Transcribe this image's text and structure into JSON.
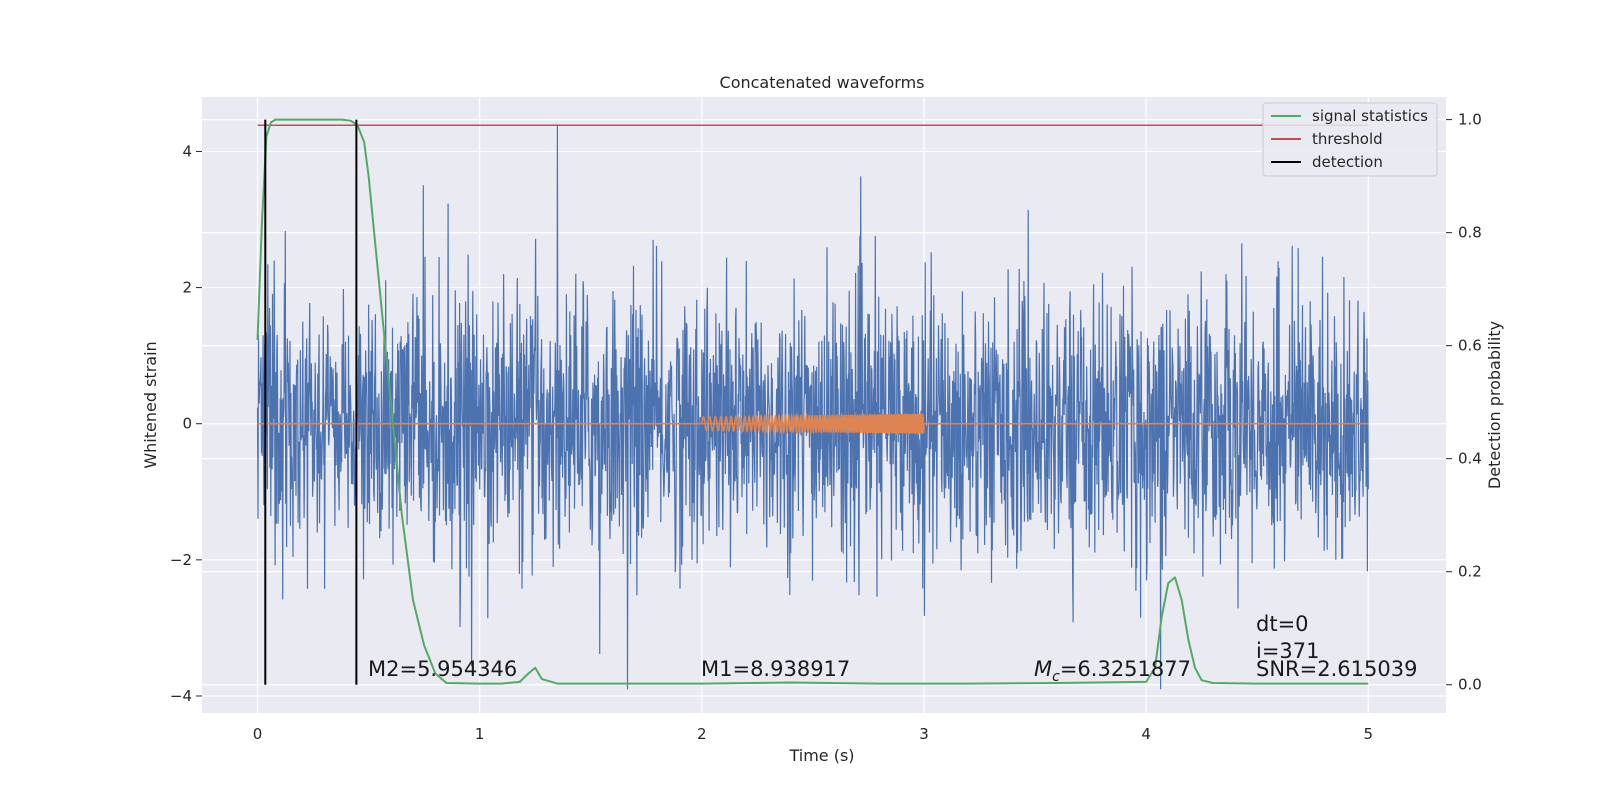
{
  "chart_data": {
    "type": "line",
    "title": "Concatenated waveforms",
    "xlabel": "Time (s)",
    "ylabel_left": "Whitened strain",
    "ylabel_right": "Detection probability",
    "xlim": [
      -0.25,
      5.35
    ],
    "ylim_left": [
      -4.25,
      4.8
    ],
    "ylim_right": [
      -0.05,
      1.04
    ],
    "x_ticks": [
      "0",
      "1",
      "2",
      "3",
      "4",
      "5"
    ],
    "y_ticks_left": [
      "−4",
      "−2",
      "0",
      "2",
      "4"
    ],
    "y_ticks_right": [
      "0.0",
      "0.2",
      "0.4",
      "0.6",
      "0.8",
      "1.0"
    ],
    "grid": true,
    "legend_position": "top-right",
    "colors": {
      "strain": "#4c72b0",
      "injected_waveform": "#dd8452",
      "signal_statistics": "#55a868",
      "threshold": "#c44e52",
      "detection": "#000000",
      "axes_background": "#eaeaf2"
    },
    "series": [
      {
        "name": "signal statistics",
        "axis": "right",
        "x": [
          0.0,
          0.02,
          0.04,
          0.06,
          0.08,
          0.1,
          0.2,
          0.3,
          0.38,
          0.42,
          0.45,
          0.48,
          0.5,
          0.55,
          0.6,
          0.65,
          0.7,
          0.75,
          0.8,
          0.85,
          1.0,
          1.1,
          1.18,
          1.22,
          1.25,
          1.28,
          1.35,
          1.6,
          2.0,
          2.4,
          2.8,
          3.2,
          3.6,
          4.0,
          4.04,
          4.07,
          4.1,
          4.13,
          4.16,
          4.19,
          4.22,
          4.25,
          4.3,
          4.5,
          5.0
        ],
        "values": [
          0.61,
          0.82,
          0.97,
          0.995,
          1.0,
          1.0,
          1.0,
          1.0,
          1.0,
          0.998,
          0.99,
          0.96,
          0.9,
          0.7,
          0.5,
          0.3,
          0.15,
          0.07,
          0.02,
          0.003,
          0.002,
          0.002,
          0.005,
          0.02,
          0.03,
          0.01,
          0.002,
          0.002,
          0.002,
          0.004,
          0.002,
          0.002,
          0.003,
          0.005,
          0.03,
          0.12,
          0.18,
          0.19,
          0.15,
          0.08,
          0.03,
          0.008,
          0.003,
          0.002,
          0.002
        ]
      },
      {
        "name": "threshold",
        "axis": "right",
        "x": [
          0.0,
          5.0
        ],
        "values": [
          0.99,
          0.99
        ]
      },
      {
        "name": "detection",
        "axis": "right",
        "events_x": [
          0.035,
          0.445
        ],
        "values": [
          0.0,
          1.0
        ]
      }
    ],
    "legend": [
      "signal statistics",
      "threshold",
      "detection"
    ],
    "annotations": {
      "m2": "M2=5.954346",
      "m1": "M1=8.938917",
      "mc_symbol": "M",
      "mc_sub": "c",
      "mc_value": "=6.3251877",
      "dt": "dt=0",
      "i": "i=371",
      "snr": "SNR=2.615039"
    }
  }
}
